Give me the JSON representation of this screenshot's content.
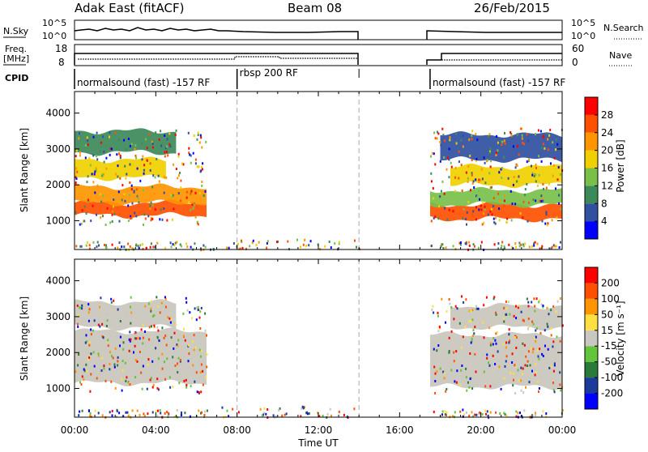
{
  "header": {
    "station": "Adak East (fitACF)",
    "beam": "Beam 08",
    "date": "26/Feb/2015"
  },
  "strips": {
    "nsky_label": "N.Sky",
    "nsearch_label": "N.Search",
    "noise_ticks": [
      "10^5",
      "10^0"
    ],
    "freq_label_1": "Freq.",
    "freq_label_2": "[MHz]",
    "freq_ticks": [
      "18",
      "8"
    ],
    "nave_label": "Nave",
    "nave_ticks": [
      "60",
      "0"
    ],
    "cpid_label": "CPID"
  },
  "cpid_segments": [
    {
      "label": "normalsound (fast) -157 RF",
      "start": 0.0,
      "end": 8.0
    },
    {
      "label": "rbsp 200 RF",
      "start": 8.0,
      "end": 14.0
    },
    {
      "label": "normalsound (fast) -157 RF",
      "start": 17.5,
      "end": 24.0
    }
  ],
  "colors": {
    "power": [
      "#0000ff",
      "#3050a0",
      "#3c8a5a",
      "#78c04a",
      "#f0d000",
      "#ff9600",
      "#ff5000",
      "#ff0000"
    ],
    "velocity": [
      "#0000ff",
      "#1a3a9c",
      "#2a7a3a",
      "#64c43c",
      "#c8c8c0",
      "#ffe040",
      "#ff9600",
      "#ff5000",
      "#ff0000"
    ],
    "background_scatter": "#c8c6bc"
  },
  "chart_data": [
    {
      "type": "heatmap",
      "title": "",
      "xlabel": "",
      "ylabel": "Slant Range [km]",
      "xlim": [
        0,
        24
      ],
      "ylim": [
        200,
        4600
      ],
      "x_ticks": [
        "00:00",
        "04:00",
        "08:00",
        "12:00",
        "16:00",
        "20:00",
        "00:00"
      ],
      "y_ticks": [
        1000,
        2000,
        3000,
        4000
      ],
      "colorbar_label": "Power [dB]",
      "colorbar_ticks": [
        28,
        24,
        20,
        16,
        12,
        8,
        4
      ],
      "data_windows_hours": [
        [
          0.0,
          6.5
        ],
        [
          17.5,
          24.0
        ]
      ],
      "bands": [
        {
          "start": 0.0,
          "end": 6.5,
          "range_start": 1150,
          "range_end": 1500,
          "level_db": 28
        },
        {
          "start": 0.0,
          "end": 6.5,
          "range_start": 1500,
          "range_end": 1950,
          "level_db": 22
        },
        {
          "start": 0.0,
          "end": 4.5,
          "range_start": 2200,
          "range_end": 2700,
          "level_db": 18
        },
        {
          "start": 0.0,
          "end": 5.0,
          "range_start": 2900,
          "range_end": 3500,
          "level_db": 10
        },
        {
          "start": 17.5,
          "end": 24.0,
          "range_start": 1050,
          "range_end": 1450,
          "level_db": 26
        },
        {
          "start": 17.5,
          "end": 24.0,
          "range_start": 1450,
          "range_end": 1850,
          "level_db": 16
        },
        {
          "start": 18.5,
          "end": 24.0,
          "range_start": 2000,
          "range_end": 2500,
          "level_db": 18
        },
        {
          "start": 18.0,
          "end": 24.0,
          "range_start": 2700,
          "range_end": 3400,
          "level_db": 8
        }
      ]
    },
    {
      "type": "heatmap",
      "title": "",
      "xlabel": "Time UT",
      "ylabel": "Slant Range [km]",
      "xlim": [
        0,
        24
      ],
      "ylim": [
        200,
        4600
      ],
      "x_ticks": [
        "00:00",
        "04:00",
        "08:00",
        "12:00",
        "16:00",
        "20:00",
        "00:00"
      ],
      "y_ticks": [
        1000,
        2000,
        3000,
        4000
      ],
      "colorbar_label": "Velocity [m s⁻¹]",
      "colorbar_ticks": [
        200,
        100,
        50,
        15,
        -15,
        -50,
        -100,
        -200
      ],
      "data_windows_hours": [
        [
          0.0,
          6.5
        ],
        [
          17.5,
          24.0
        ]
      ],
      "bands": [
        {
          "start": 0.0,
          "end": 6.5,
          "range_start": 1150,
          "range_end": 2600,
          "velocity": 0
        },
        {
          "start": 0.0,
          "end": 5.0,
          "range_start": 2700,
          "range_end": 3400,
          "velocity": 0
        },
        {
          "start": 17.5,
          "end": 24.0,
          "range_start": 1050,
          "range_end": 2500,
          "velocity": 0
        },
        {
          "start": 18.5,
          "end": 24.0,
          "range_start": 2700,
          "range_end": 3300,
          "velocity": 0
        }
      ]
    }
  ]
}
